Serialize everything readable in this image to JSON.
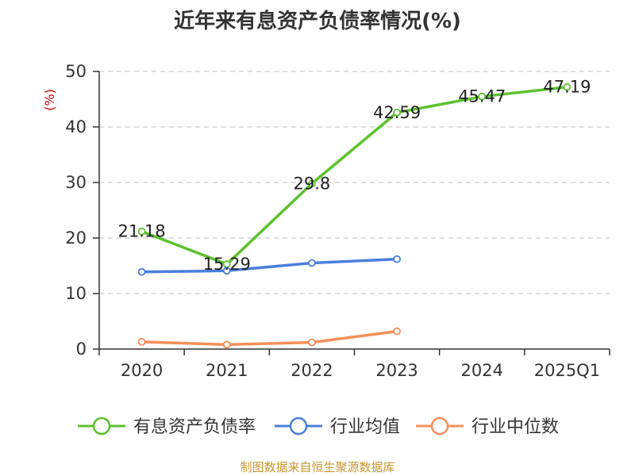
{
  "title": "近年来有息资产负债率情况(%)",
  "source": "制图数据来自恒生聚源数据库",
  "colors": {
    "series_debt": "#5cc22e",
    "series_avg": "#4a7fdc",
    "series_median": "#f5905a",
    "grid": "#cccccc",
    "axis": "#333333",
    "unit": "#cc0000"
  },
  "chart_data": {
    "type": "line",
    "title": "近年来有息资产负债率情况(%)",
    "ylabel": "(%)",
    "categories": [
      "2020",
      "2021",
      "2022",
      "2023",
      "2024",
      "2025Q1"
    ],
    "ylim": [
      0,
      50
    ],
    "yticks": [
      0,
      10,
      20,
      30,
      40,
      50
    ],
    "grid": true,
    "legend_position": "bottom",
    "series": [
      {
        "name": "有息资产负债率",
        "color": "#5cc22e",
        "values": [
          21.18,
          15.29,
          29.8,
          42.59,
          45.47,
          47.19
        ],
        "labels": [
          "21.18",
          "15.29",
          "29.8",
          "42.59",
          "45.47",
          "47.19"
        ]
      },
      {
        "name": "行业均值",
        "color": "#4a7fdc",
        "values": [
          13.9,
          14.1,
          15.5,
          16.2,
          null,
          null
        ]
      },
      {
        "name": "行业中位数",
        "color": "#f5905a",
        "values": [
          1.3,
          0.8,
          1.2,
          3.2,
          null,
          null
        ]
      }
    ]
  }
}
